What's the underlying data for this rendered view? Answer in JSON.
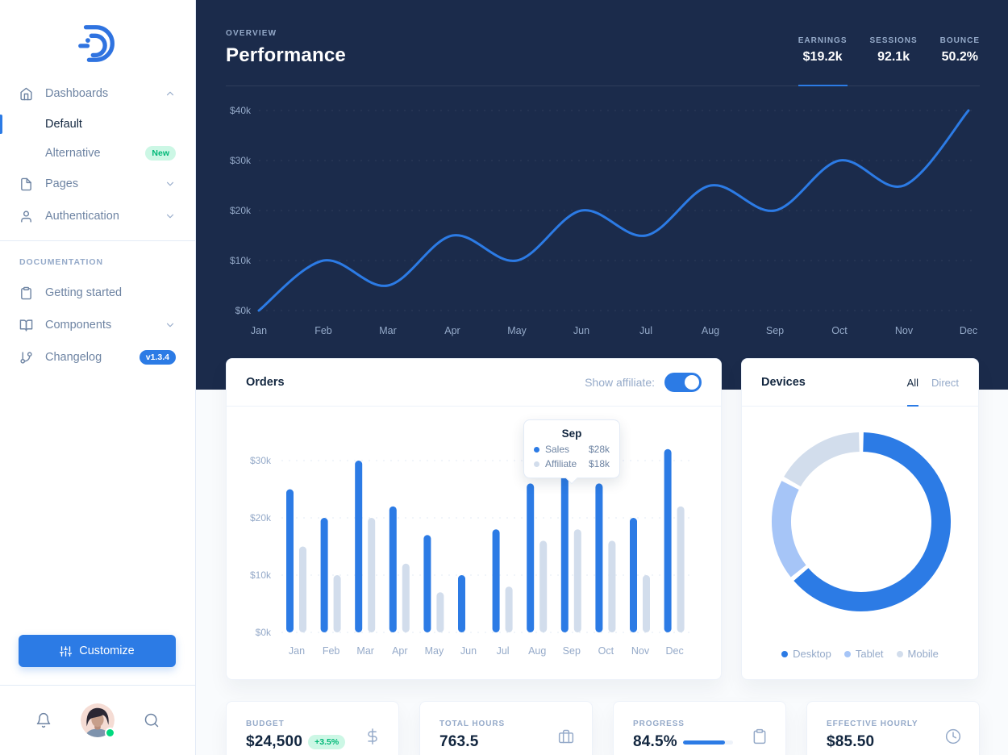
{
  "colors": {
    "primary": "#2c7be5",
    "navy_bg": "#1b2b4b",
    "muted": "#95aac9",
    "heading": "#12263f",
    "sidebar_link": "#6e84a3",
    "light_series": "#d2ddec",
    "tablet_series": "#a6c5f7",
    "success": "#00d97e",
    "success_soft_bg": "#ccf7e5",
    "page_bg": "#f9fbfd",
    "card_border": "#edf2f9"
  },
  "sidebar": {
    "items": {
      "dashboards": "Dashboards",
      "default": "Default",
      "alternative": "Alternative",
      "new_badge": "New",
      "pages": "Pages",
      "authentication": "Authentication",
      "docs_heading": "DOCUMENTATION",
      "getting_started": "Getting started",
      "components": "Components",
      "changelog": "Changelog",
      "version_badge": "v1.3.4"
    },
    "customize_label": "Customize"
  },
  "hero": {
    "overline": "OVERVIEW",
    "title": "Performance",
    "stats": [
      {
        "label": "EARNINGS",
        "value": "$19.2k",
        "active": true
      },
      {
        "label": "SESSIONS",
        "value": "92.1k",
        "active": false
      },
      {
        "label": "BOUNCE",
        "value": "50.2%",
        "active": false
      }
    ]
  },
  "orders_card": {
    "title": "Orders",
    "toggle_label": "Show affiliate:",
    "toggle_on": true,
    "tooltip": {
      "title": "Sep",
      "rows": [
        {
          "label": "Sales",
          "value": "$28k"
        },
        {
          "label": "Affiliate",
          "value": "$18k"
        }
      ]
    }
  },
  "devices_card": {
    "title": "Devices",
    "tabs": [
      {
        "label": "All",
        "active": true
      },
      {
        "label": "Direct",
        "active": false
      }
    ]
  },
  "stat_cards": [
    {
      "label": "BUDGET",
      "value": "$24,500",
      "badge": "+3.5%",
      "icon": "dollar-sign-icon"
    },
    {
      "label": "TOTAL HOURS",
      "value": "763.5",
      "icon": "briefcase-icon"
    },
    {
      "label": "PROGRESS",
      "value": "84.5%",
      "progress_pct": 84.5,
      "icon": "clipboard-icon"
    },
    {
      "label": "EFFECTIVE HOURLY",
      "value": "$85.50",
      "icon": "clock-icon"
    }
  ],
  "chart_data": [
    {
      "id": "performance-line",
      "type": "line",
      "x": [
        "Jan",
        "Feb",
        "Mar",
        "Apr",
        "May",
        "Jun",
        "Jul",
        "Aug",
        "Sep",
        "Oct",
        "Nov",
        "Dec"
      ],
      "values": [
        0,
        10,
        5,
        15,
        10,
        20,
        15,
        25,
        20,
        30,
        25,
        40
      ],
      "unit": "$k",
      "yticks": [
        "$0k",
        "$10k",
        "$20k",
        "$30k",
        "$40k"
      ],
      "ylim": [
        0,
        40
      ],
      "line_color": "#2c7be5",
      "grid": "dashed-horizontal",
      "background": "#1b2b4b",
      "legend": "none"
    },
    {
      "id": "orders-bars",
      "type": "bar",
      "categories": [
        "Jan",
        "Feb",
        "Mar",
        "Apr",
        "May",
        "Jun",
        "Jul",
        "Aug",
        "Sep",
        "Oct",
        "Nov",
        "Dec"
      ],
      "series": [
        {
          "name": "Sales",
          "color": "#2c7be5",
          "values": [
            25,
            20,
            30,
            22,
            17,
            10,
            18,
            26,
            28,
            26,
            20,
            32
          ]
        },
        {
          "name": "Affiliate",
          "color": "#d2ddec",
          "values": [
            15,
            10,
            20,
            12,
            7,
            0,
            8,
            16,
            18,
            16,
            10,
            22
          ]
        }
      ],
      "unit": "$k",
      "yticks": [
        "$0k",
        "$10k",
        "$20k",
        "$30k"
      ],
      "ylim": [
        0,
        30
      ],
      "grid": "dashed-horizontal"
    },
    {
      "id": "devices-donut",
      "type": "pie",
      "donut": true,
      "slices": [
        {
          "label": "Desktop",
          "value": 64,
          "color": "#2c7be5"
        },
        {
          "label": "Tablet",
          "value": 19,
          "color": "#a6c5f7"
        },
        {
          "label": "Mobile",
          "value": 17,
          "color": "#d2ddec"
        }
      ],
      "legend_position": "bottom"
    }
  ]
}
